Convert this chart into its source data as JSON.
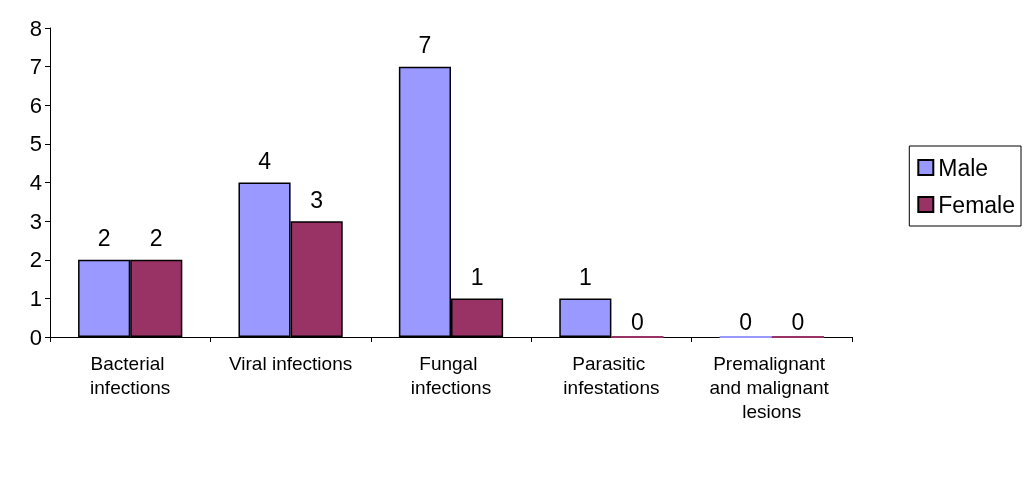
{
  "chart_data": {
    "type": "bar",
    "categories": [
      "Bacterial infections",
      "Viral infections",
      "Fungal infections",
      "Parasitic infestations",
      "Premalignant and malignant lesions"
    ],
    "series": [
      {
        "name": "Male",
        "color": "#9999ff",
        "values": [
          2,
          4,
          7,
          1,
          0
        ]
      },
      {
        "name": "Female",
        "color": "#993366",
        "values": [
          2,
          3,
          1,
          0,
          0
        ]
      }
    ],
    "ylim": [
      0,
      8
    ],
    "yticks": [
      0,
      1,
      2,
      3,
      4,
      5,
      6,
      7,
      8
    ],
    "data_labels": true,
    "grid": false,
    "legend": "right"
  }
}
